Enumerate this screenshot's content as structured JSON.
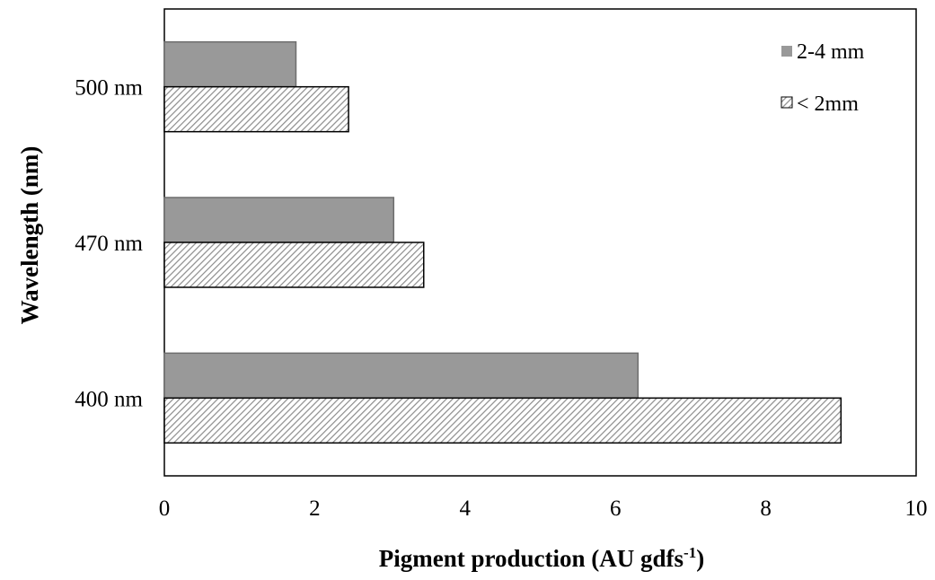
{
  "chart_data": {
    "type": "bar",
    "orientation": "horizontal",
    "categories": [
      "400 nm",
      "470 nm",
      "500 nm"
    ],
    "series": [
      {
        "name": "2-4 mm",
        "values": [
          6.3,
          3.05,
          1.75
        ]
      },
      {
        "name": "< 2mm",
        "values": [
          9.0,
          3.45,
          2.45
        ]
      }
    ],
    "xlabel": "Pigment production (AU gdfs",
    "xlabel_superscript": "-1",
    "xlabel_suffix": ")",
    "ylabel": "Wavelength (nm)",
    "xlim": [
      0,
      10
    ],
    "xticks": [
      "0",
      "2",
      "4",
      "6",
      "8",
      "10"
    ],
    "grid": false,
    "legend_position": "top-right",
    "colors": {
      "series_1_fill": "#999999",
      "series_2_hatch": "#8c8c8c",
      "series_2_background": "#ffffff",
      "bar_border": "#000000"
    }
  }
}
